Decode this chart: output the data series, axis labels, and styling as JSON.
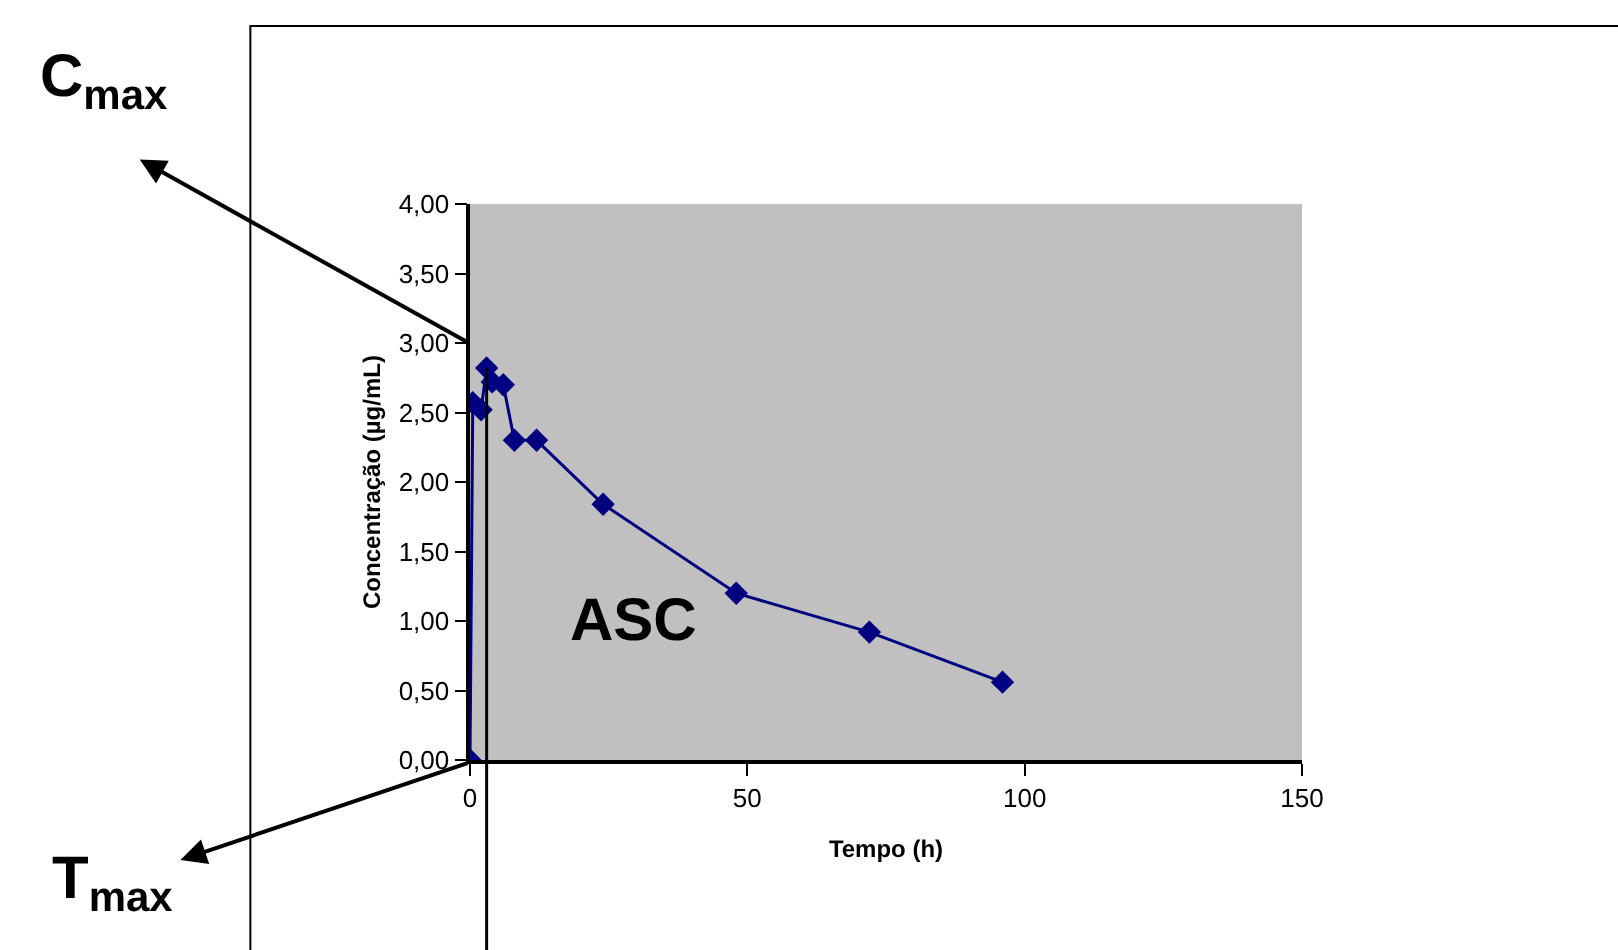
{
  "chart_data": {
    "type": "line",
    "xlabel": "Tempo (h)",
    "ylabel": "Concentração (µg/mL)",
    "x": [
      0,
      0.5,
      2,
      3,
      4,
      6,
      8,
      12,
      24,
      48,
      72,
      96
    ],
    "series": [
      {
        "color": "#000080",
        "values": [
          0,
          2.57,
          2.52,
          2.82,
          2.72,
          2.7,
          2.3,
          2.3,
          1.84,
          1.2,
          0.92,
          0.56
        ]
      }
    ],
    "xlim": [
      0,
      150
    ],
    "xticks": [
      0,
      50,
      100,
      150
    ],
    "ylim": [
      0,
      4
    ],
    "yticks": [
      {
        "value": 0,
        "label": "0,00"
      },
      {
        "value": 0.5,
        "label": "0,50"
      },
      {
        "value": 1,
        "label": "1,00"
      },
      {
        "value": 1.5,
        "label": "1,50"
      },
      {
        "value": 2,
        "label": "2,00"
      },
      {
        "value": 2.5,
        "label": "2,50"
      },
      {
        "value": 3,
        "label": "3,00"
      },
      {
        "value": 3.5,
        "label": "3,50"
      },
      {
        "value": 4,
        "label": "4,00"
      }
    ],
    "ref_lines": [
      {
        "axis": "x",
        "value": 3,
        "color": "#000000"
      }
    ],
    "annotations": [
      "C$_{max}$",
      "T$_{max}$",
      "ASC"
    ],
    "marker": "diamond",
    "line_style": "solid",
    "grid": false,
    "legend": false
  }
}
